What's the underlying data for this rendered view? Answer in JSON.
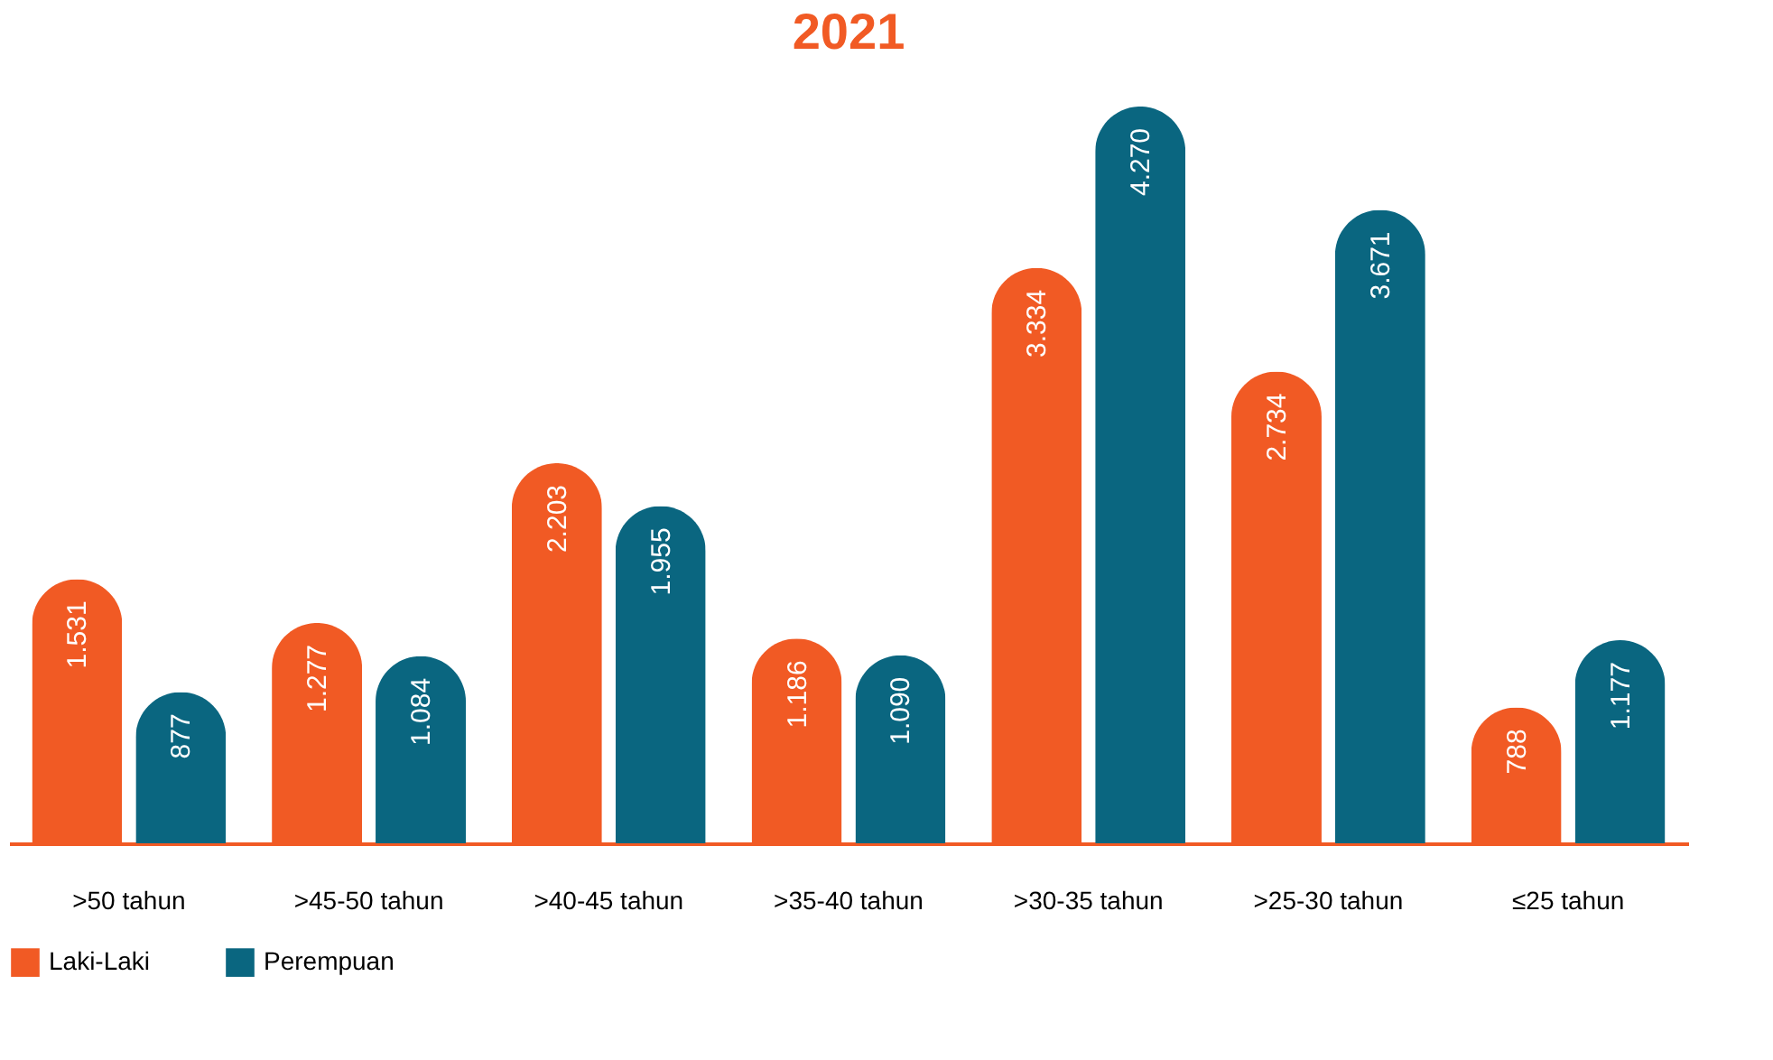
{
  "chart_data": {
    "type": "bar",
    "title": "2021",
    "categories": [
      ">50 tahun",
      ">45-50 tahun",
      ">40-45 tahun",
      ">35-40 tahun",
      ">30-35 tahun",
      ">25-30 tahun",
      "≤25 tahun"
    ],
    "series": [
      {
        "name": "Laki-Laki",
        "color": "#f15a24",
        "values": [
          1531,
          1277,
          2203,
          1186,
          3334,
          2734,
          788
        ],
        "value_labels": [
          "1.531",
          "1.277",
          "2.203",
          "1.186",
          "3.334",
          "2.734",
          "788"
        ]
      },
      {
        "name": "Perempuan",
        "color": "#0a6680",
        "values": [
          877,
          1084,
          1955,
          1090,
          4270,
          3671,
          1177
        ],
        "value_labels": [
          "877",
          "1.084",
          "1.955",
          "1.090",
          "4.270",
          "3.671",
          "1.177"
        ]
      }
    ],
    "legend": "bottom",
    "grid": false
  }
}
